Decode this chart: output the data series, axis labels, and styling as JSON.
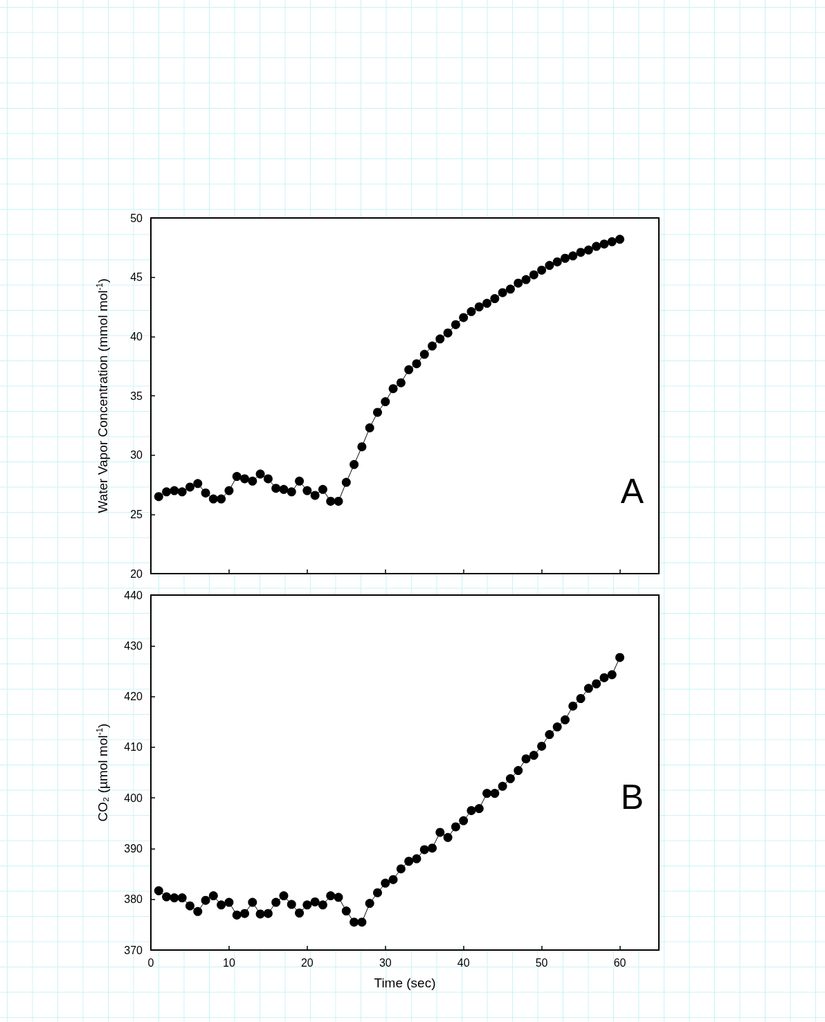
{
  "chart_data": [
    {
      "type": "line",
      "ylabel": "Water Vapor Concentration (mmol mol$^{-1}$)",
      "annotations": [
        "A"
      ],
      "marker": "circle",
      "line_style": "solid",
      "tick_labels": "y",
      "x": [
        1,
        2,
        3,
        4,
        5,
        6,
        7,
        8,
        9,
        10,
        11,
        12,
        13,
        14,
        15,
        16,
        17,
        18,
        19,
        20,
        21,
        22,
        23,
        24,
        25,
        26,
        27,
        28,
        29,
        30,
        31,
        32,
        33,
        34,
        35,
        36,
        37,
        38,
        39,
        40,
        41,
        42,
        43,
        44,
        45,
        46,
        47,
        48,
        49,
        50,
        51,
        52,
        53,
        54,
        55,
        56,
        57,
        58,
        59,
        60
      ],
      "series": [
        {
          "color": "#000000",
          "values": [
            26.5,
            26.9,
            27.0,
            26.9,
            27.3,
            27.6,
            26.8,
            26.3,
            26.3,
            27.0,
            28.2,
            28.0,
            27.8,
            28.4,
            28.0,
            27.2,
            27.1,
            26.9,
            27.8,
            27.0,
            26.6,
            27.1,
            26.1,
            26.1,
            27.7,
            29.2,
            30.7,
            32.3,
            33.6,
            34.5,
            35.6,
            36.1,
            37.2,
            37.7,
            38.5,
            39.2,
            39.8,
            40.3,
            41.0,
            41.6,
            42.1,
            42.5,
            42.8,
            43.2,
            43.7,
            44.0,
            44.5,
            44.8,
            45.2,
            45.6,
            46.0,
            46.3,
            46.6,
            46.8,
            47.1,
            47.3,
            47.6,
            47.8,
            48.0,
            48.2
          ]
        }
      ],
      "xlim": [
        0,
        65
      ],
      "xticks": [
        0,
        10,
        20,
        30,
        40,
        50,
        60
      ],
      "ylim": [
        20,
        50
      ],
      "yticks": [
        20,
        25,
        30,
        35,
        40,
        45,
        50
      ]
    },
    {
      "type": "line",
      "xlabel": "Time (sec)",
      "ylabel": "CO₂ (µmol mol$^{-1}$)",
      "annotations": [
        "B"
      ],
      "marker": "circle",
      "line_style": "solid",
      "x": [
        1,
        2,
        3,
        4,
        5,
        6,
        7,
        8,
        9,
        10,
        11,
        12,
        13,
        14,
        15,
        16,
        17,
        18,
        19,
        20,
        21,
        22,
        23,
        24,
        25,
        26,
        27,
        28,
        29,
        30,
        31,
        32,
        33,
        34,
        35,
        36,
        37,
        38,
        39,
        40,
        41,
        42,
        43,
        44,
        45,
        46,
        47,
        48,
        49,
        50,
        51,
        52,
        53,
        54,
        55,
        56,
        57,
        58,
        59,
        60
      ],
      "series": [
        {
          "color": "#000000",
          "values": [
            381.7,
            380.5,
            380.3,
            380.3,
            378.7,
            377.6,
            379.8,
            380.7,
            378.9,
            379.4,
            376.9,
            377.2,
            379.4,
            377.1,
            377.2,
            379.4,
            380.7,
            379.0,
            377.3,
            378.9,
            379.5,
            378.9,
            380.7,
            380.4,
            377.7,
            375.5,
            375.5,
            379.2,
            381.3,
            383.2,
            383.9,
            386.0,
            387.5,
            388.0,
            389.8,
            390.1,
            393.2,
            392.2,
            394.3,
            395.5,
            397.5,
            397.9,
            400.9,
            400.9,
            402.3,
            403.8,
            405.4,
            407.7,
            408.4,
            410.2,
            412.5,
            414.0,
            415.4,
            418.1,
            419.6,
            421.6,
            422.5,
            423.7,
            424.3,
            427.7
          ]
        }
      ],
      "xlim": [
        0,
        65
      ],
      "xticks": [
        0,
        10,
        20,
        30,
        40,
        50,
        60
      ],
      "ylim": [
        370,
        440
      ],
      "yticks": [
        370,
        380,
        390,
        400,
        410,
        420,
        430,
        440
      ]
    }
  ]
}
